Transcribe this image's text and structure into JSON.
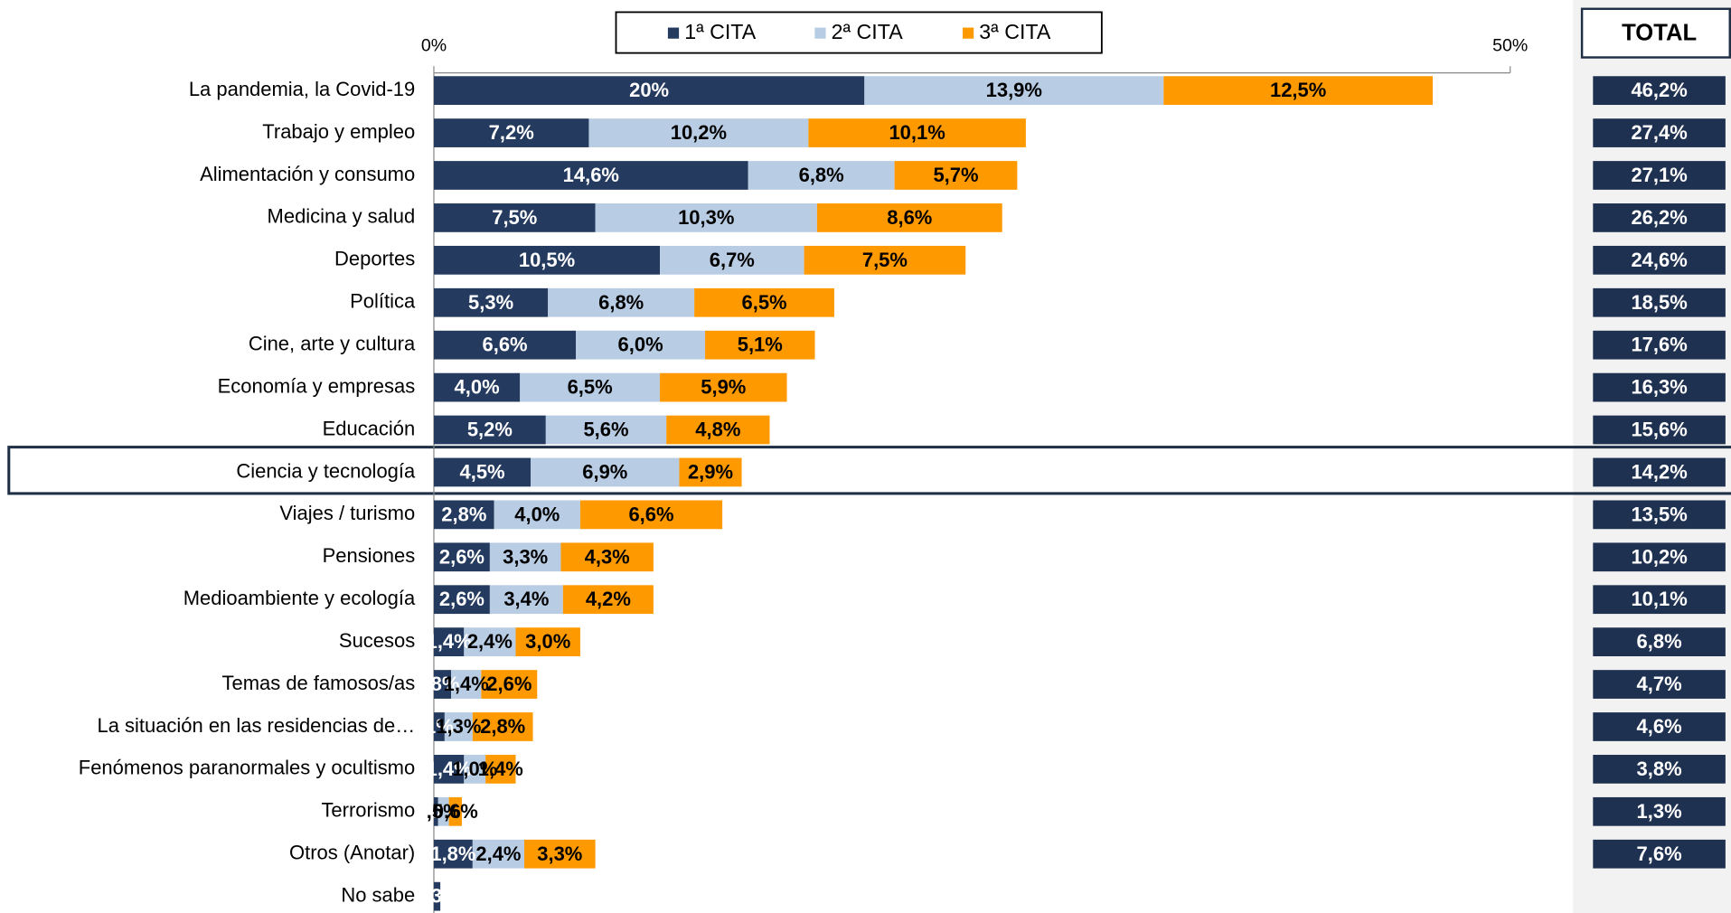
{
  "chart_data": {
    "type": "stacked-bar-horizontal",
    "categories": [
      "La pandemia, la Covid-19",
      "Trabajo y empleo",
      "Alimentación y consumo",
      "Medicina y salud",
      "Deportes",
      "Política",
      "Cine, arte y cultura",
      "Economía y empresas",
      "Educación",
      "Ciencia y tecnología",
      "Viajes / turismo",
      "Pensiones",
      "Medioambiente y ecología",
      "Sucesos",
      "Temas de famosos/as",
      "La situación en las residencias de…",
      "Fenómenos paranormales y ocultismo",
      "Terrorismo",
      "Otros (Anotar)",
      "No sabe"
    ],
    "series": [
      {
        "name": "1ª CITA",
        "color": "#243a5e",
        "values": [
          20,
          7.2,
          14.6,
          7.5,
          10.5,
          5.3,
          6.6,
          4.0,
          5.2,
          4.5,
          2.8,
          2.6,
          2.6,
          1.4,
          0.8,
          0.5,
          1.4,
          0.2,
          1.8,
          0.3
        ],
        "value_labels": [
          "20%",
          "7,2%",
          "14,6%",
          "7,5%",
          "10,5%",
          "5,3%",
          "6,6%",
          "4,0%",
          "5,2%",
          "4,5%",
          "2,8%",
          "2,6%",
          "2,6%",
          "1,4%",
          ",8%",
          "1%",
          "1,4%",
          "0",
          "1,8%",
          "0,3%"
        ]
      },
      {
        "name": "2ª CITA",
        "color": "#b8cce4",
        "values": [
          13.9,
          10.2,
          6.8,
          10.3,
          6.7,
          6.8,
          6.0,
          6.5,
          5.6,
          6.9,
          4.0,
          3.3,
          3.4,
          2.4,
          1.4,
          1.3,
          1.0,
          0.5,
          2.4,
          null
        ],
        "value_labels": [
          "13,9%",
          "10,2%",
          "6,8%",
          "10,3%",
          "6,7%",
          "6,8%",
          "6,0%",
          "6,5%",
          "5,6%",
          "6,9%",
          "4,0%",
          "3,3%",
          "3,4%",
          "2,4%",
          "1,4%",
          "1,3%",
          "1,0%",
          ",5%",
          "2,4%",
          null
        ]
      },
      {
        "name": "3ª CITA",
        "color": "#ff9900",
        "values": [
          12.5,
          10.1,
          5.7,
          8.6,
          7.5,
          6.5,
          5.1,
          5.9,
          4.8,
          2.9,
          6.6,
          4.3,
          4.2,
          3.0,
          2.6,
          2.8,
          1.4,
          0.6,
          3.3,
          null
        ],
        "value_labels": [
          "12,5%",
          "10,1%",
          "5,7%",
          "8,6%",
          "7,5%",
          "6,5%",
          "5,1%",
          "5,9%",
          "4,8%",
          "2,9%",
          "6,6%",
          "4,3%",
          "4,2%",
          "3,0%",
          "2,6%",
          "2,8%",
          "1,4%",
          "0,6%",
          "3,3%",
          null
        ]
      }
    ],
    "xlim": [
      0,
      50
    ],
    "xticks": [
      {
        "value": 0,
        "label": "0%"
      },
      {
        "value": 50,
        "label": "50%"
      }
    ],
    "legend": "top",
    "totals_title": "TOTAL",
    "totals": [
      46.2,
      27.4,
      27.1,
      26.2,
      24.6,
      18.5,
      17.6,
      16.3,
      15.6,
      14.2,
      13.5,
      10.2,
      10.1,
      6.8,
      4.7,
      4.6,
      3.8,
      1.3,
      7.6,
      null
    ],
    "totals_labels": [
      "46,2%",
      "27,4%",
      "27,1%",
      "26,2%",
      "24,6%",
      "18,5%",
      "17,6%",
      "16,3%",
      "15,6%",
      "14,2%",
      "13,5%",
      "10,2%",
      "10,1%",
      "6,8%",
      "4,7%",
      "4,6%",
      "3,8%",
      "1,3%",
      "7,6%",
      null
    ],
    "totals_color": "#1f3150"
  }
}
